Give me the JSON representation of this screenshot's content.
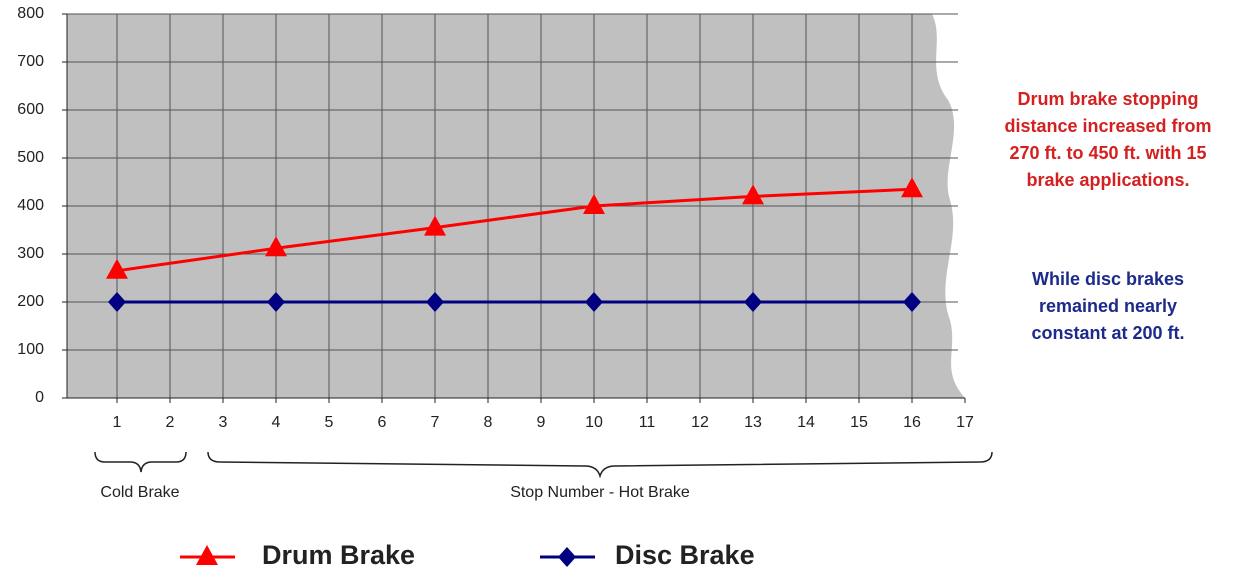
{
  "chart_data": {
    "type": "line",
    "x": [
      1,
      4,
      7,
      10,
      13,
      16
    ],
    "series": [
      {
        "name": "Drum Brake",
        "color": "#ff0000",
        "marker": "triangle",
        "values": [
          265,
          312,
          355,
          400,
          420,
          435
        ]
      },
      {
        "name": "Disc Brake",
        "color": "#000080",
        "marker": "diamond",
        "values": [
          200,
          200,
          200,
          200,
          200,
          200
        ]
      }
    ],
    "xlim": [
      0,
      17
    ],
    "xticks": [
      1,
      2,
      3,
      4,
      5,
      6,
      7,
      8,
      9,
      10,
      11,
      12,
      13,
      14,
      15,
      16,
      17
    ],
    "ylim": [
      0,
      800
    ],
    "yticks": [
      0,
      100,
      200,
      300,
      400,
      500,
      600,
      700,
      800
    ],
    "grid": true,
    "group_labels": [
      "Cold Brake",
      "Stop Number - Hot Brake"
    ],
    "annotations": [
      {
        "color": "#d42020",
        "lines": [
          "Drum brake stopping",
          "distance increased from",
          "270 ft. to 450 ft. with 15",
          "brake applications."
        ]
      },
      {
        "color": "#1c2a8c",
        "lines": [
          "While disc brakes",
          "remained nearly",
          "constant at 200 ft."
        ]
      }
    ]
  }
}
